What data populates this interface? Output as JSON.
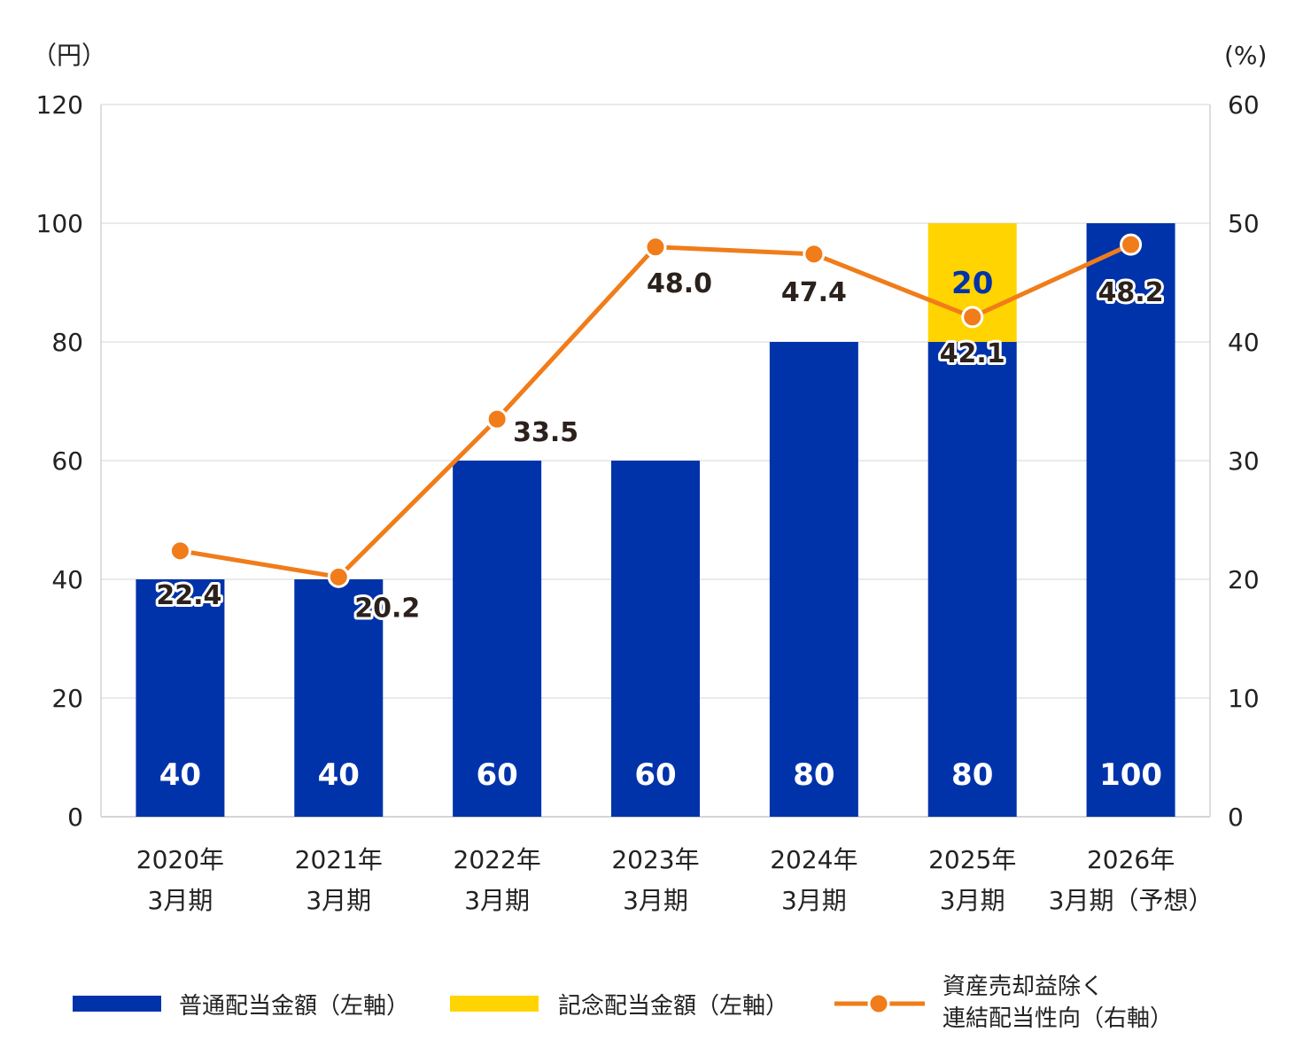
{
  "colors": {
    "regular": "#0033aa",
    "commemorative": "#ffd400",
    "payout": "#f07c1a",
    "grid": "#d4d4d4",
    "text": "#222222"
  },
  "axes": {
    "left_unit": "（円）",
    "right_unit": "(%)",
    "left_ticks": [
      "0",
      "20",
      "40",
      "60",
      "80",
      "100",
      "120"
    ],
    "right_ticks": [
      "0",
      "10",
      "20",
      "30",
      "40",
      "50",
      "60"
    ]
  },
  "chart_data": {
    "type": "bar",
    "stacked": true,
    "categories": [
      [
        "2020年",
        "3月期"
      ],
      [
        "2021年",
        "3月期"
      ],
      [
        "2022年",
        "3月期"
      ],
      [
        "2023年",
        "3月期"
      ],
      [
        "2024年",
        "3月期"
      ],
      [
        "2025年",
        "3月期"
      ],
      [
        "2026年",
        "3月期（予想）"
      ]
    ],
    "ylim": [
      0,
      120
    ],
    "y2lim": [
      0,
      60
    ],
    "grid": true,
    "legend_position": "bottom",
    "series": [
      {
        "name": "普通配当金額（左軸）",
        "kind": "bar",
        "axis": "left",
        "values": [
          40,
          40,
          60,
          60,
          80,
          80,
          100
        ],
        "labels": [
          "40",
          "40",
          "60",
          "60",
          "80",
          "80",
          "100"
        ]
      },
      {
        "name": "記念配当金額（左軸）",
        "kind": "bar",
        "axis": "left",
        "values": [
          0,
          0,
          0,
          0,
          0,
          20,
          0
        ],
        "labels": [
          "",
          "",
          "",
          "",
          "",
          "20",
          ""
        ]
      },
      {
        "name": [
          "資産売却益除く",
          "連結配当性向（右軸）"
        ],
        "kind": "line",
        "axis": "right",
        "values": [
          22.4,
          20.2,
          33.5,
          48.0,
          47.4,
          42.1,
          48.2
        ],
        "labels": [
          "22.4",
          "20.2",
          "33.5",
          "48.0",
          "47.4",
          "42.1",
          "48.2"
        ]
      }
    ]
  }
}
